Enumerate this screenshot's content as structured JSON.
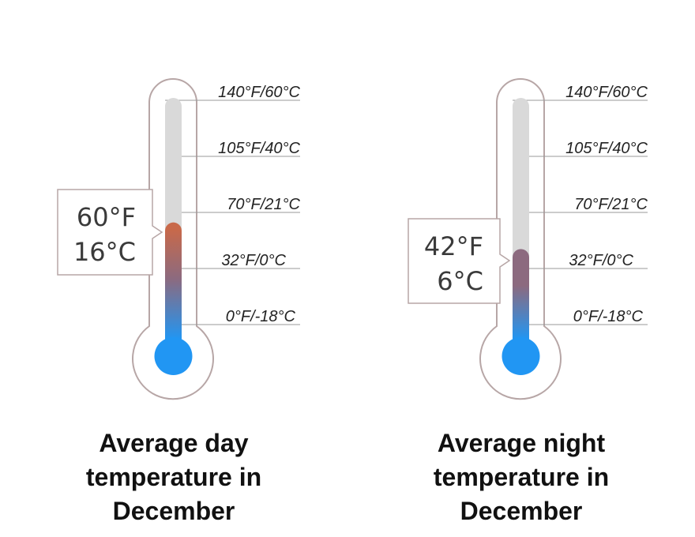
{
  "colors": {
    "outline": "#b7a6a6",
    "tube": "#d9d9d9",
    "bulb": "#2196f3",
    "cold": "#2196f3",
    "mid": "#8c6a7f",
    "warm": "#c8694a",
    "tick": "#9a9a9a",
    "callout_border": "#b7a6a6"
  },
  "scale": [
    {
      "label": "140°F/60°C",
      "f": 140
    },
    {
      "label": "105°F/40°C",
      "f": 105
    },
    {
      "label": "70°F/21°C",
      "f": 70
    },
    {
      "label": "32°F/0°C",
      "f": 32
    },
    {
      "label": "0°F/-18°C",
      "f": 0
    }
  ],
  "thermometers": [
    {
      "fahrenheit": "60°F",
      "celsius": "16°C",
      "value_f": 60,
      "caption": [
        "Average day",
        "temperature in",
        "December"
      ]
    },
    {
      "fahrenheit": "42°F",
      "celsius": "6°C",
      "value_f": 42,
      "caption": [
        "Average night",
        "temperature in",
        "December"
      ]
    }
  ]
}
